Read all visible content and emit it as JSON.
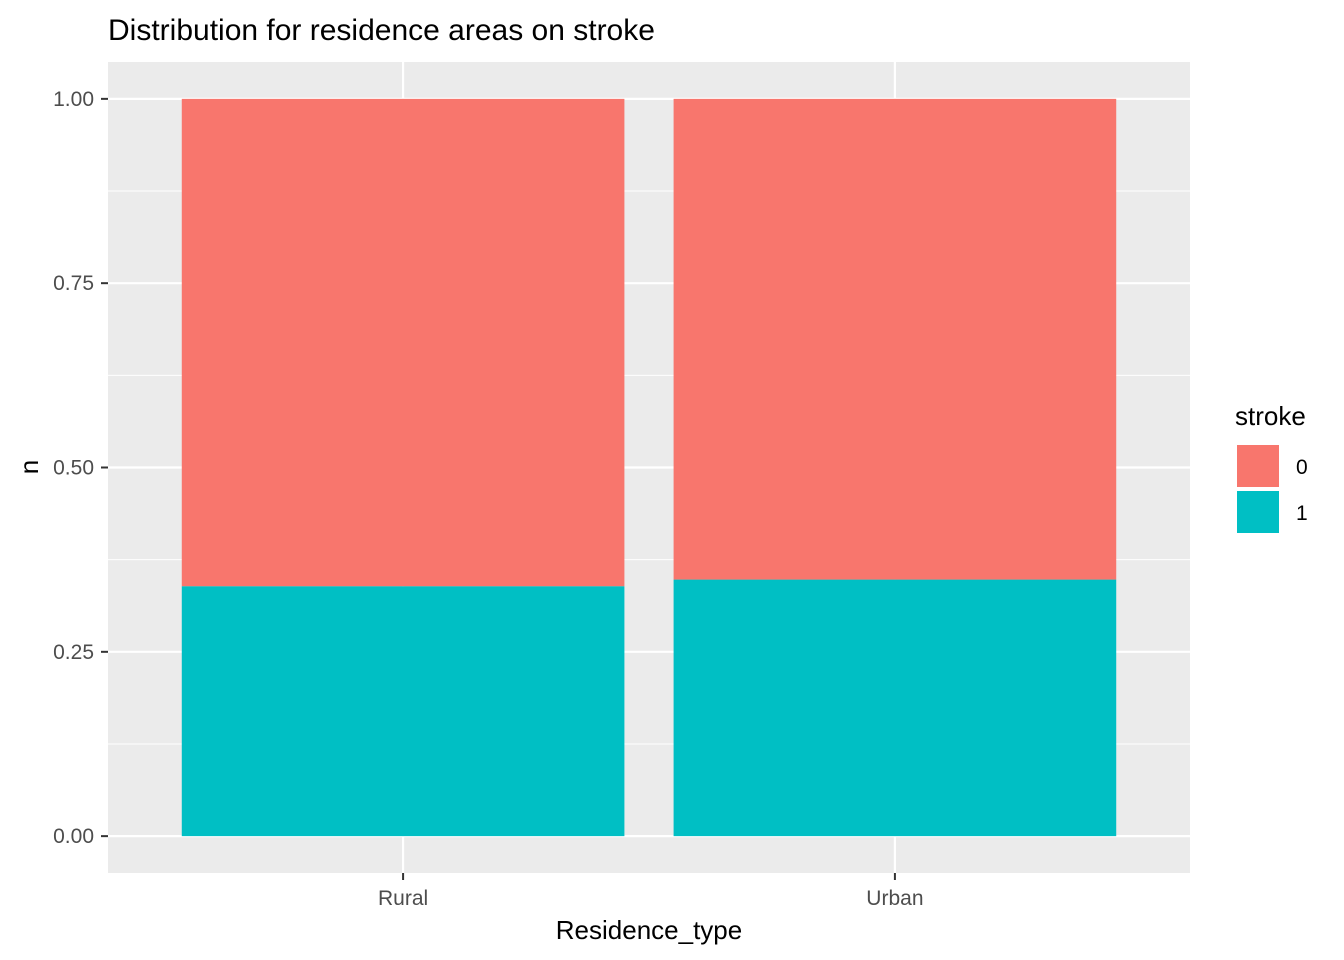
{
  "chart_data": {
    "type": "bar",
    "stacked": true,
    "position": "fill",
    "title": "Distribution for residence areas on stroke",
    "xlabel": "Residence_type",
    "ylabel": "n",
    "categories": [
      "Rural",
      "Urban"
    ],
    "series": [
      {
        "name": "0",
        "values": [
          0.661,
          0.652
        ],
        "color": "#F8766D"
      },
      {
        "name": "1",
        "values": [
          0.339,
          0.348
        ],
        "color": "#00BFC4"
      }
    ],
    "ylim": [
      -0.05,
      1.05
    ],
    "yticks": [
      0.0,
      0.25,
      0.5,
      0.75,
      1.0
    ],
    "ytick_labels": [
      "0.00",
      "0.25",
      "0.50",
      "0.75",
      "1.00"
    ],
    "grid": true,
    "legend": {
      "title": "stroke",
      "placement": "right",
      "entries": [
        "0",
        "1"
      ]
    },
    "colors": {
      "panel_background": "#EBEBEB",
      "gridline": "#FFFFFF",
      "tick_label": "#4D4D4D",
      "tick_mark": "#333333"
    }
  }
}
